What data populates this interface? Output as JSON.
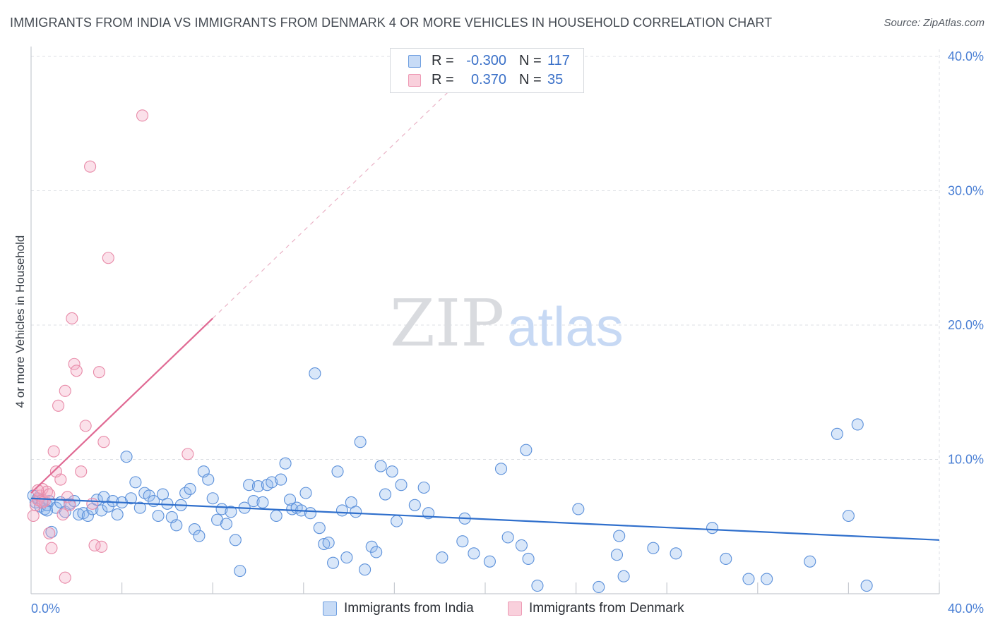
{
  "title": "IMMIGRANTS FROM INDIA VS IMMIGRANTS FROM DENMARK 4 OR MORE VEHICLES IN HOUSEHOLD CORRELATION CHART",
  "source": "Source: ZipAtlas.com",
  "watermark": {
    "zip": "ZIP",
    "atlas": "atlas"
  },
  "legend_top": {
    "rows": [
      {
        "r_label": "R =",
        "r_value": "-0.300",
        "n_label": "N =",
        "n_value": "117",
        "color": "#a9c8f2"
      },
      {
        "r_label": "R =",
        "r_value": "0.370",
        "n_label": "N =",
        "n_value": "35",
        "color": "#f6b8cb"
      }
    ]
  },
  "legend_bottom": {
    "india": {
      "label": "Immigrants from India",
      "color": "#a9c8f2"
    },
    "denmark": {
      "label": "Immigrants from Denmark",
      "color": "#f6b8cb"
    }
  },
  "colors": {
    "india_fill": "rgba(147,186,238,0.35)",
    "india_stroke": "#5b90da",
    "india_line": "#2f6fcc",
    "denmark_fill": "rgba(244,170,195,0.35)",
    "denmark_stroke": "#e88aa8",
    "denmark_line": "#e06a94",
    "tick_text": "#4a7fd4",
    "grid": "#dcdfe4"
  },
  "chart_data": {
    "type": "scatter",
    "title": "IMMIGRANTS FROM INDIA VS IMMIGRANTS FROM DENMARK 4 OR MORE VEHICLES IN HOUSEHOLD CORRELATION CHART",
    "xlabel": "",
    "ylabel": "4 or more Vehicles in Household",
    "xlim": [
      0,
      40
    ],
    "ylim": [
      0,
      40
    ],
    "x_tick_labels": [
      "0.0%",
      "40.0%"
    ],
    "y_tick_labels": [
      "10.0%",
      "20.0%",
      "30.0%",
      "40.0%"
    ],
    "y_ticks": [
      10,
      20,
      30,
      40
    ],
    "grid": true,
    "legend_position": "top-center",
    "series": [
      {
        "name": "Immigrants from India",
        "r": -0.3,
        "n": 117,
        "trend": {
          "x": [
            0,
            40
          ],
          "y": [
            7.1,
            4.0
          ]
        },
        "points": [
          [
            0.1,
            7.3
          ],
          [
            0.2,
            6.8
          ],
          [
            0.3,
            7.1
          ],
          [
            0.4,
            6.5
          ],
          [
            0.5,
            7.0
          ],
          [
            0.6,
            6.3
          ],
          [
            0.7,
            6.6
          ],
          [
            0.8,
            6.9
          ],
          [
            0.9,
            4.6
          ],
          [
            1.1,
            6.4
          ],
          [
            1.3,
            6.8
          ],
          [
            1.5,
            6.1
          ],
          [
            1.7,
            6.7
          ],
          [
            1.9,
            6.9
          ],
          [
            2.1,
            5.9
          ],
          [
            2.3,
            6.0
          ],
          [
            2.5,
            5.8
          ],
          [
            2.7,
            6.3
          ],
          [
            2.9,
            7.0
          ],
          [
            3.1,
            6.2
          ],
          [
            3.2,
            7.2
          ],
          [
            3.4,
            6.5
          ],
          [
            3.6,
            6.9
          ],
          [
            3.8,
            5.9
          ],
          [
            4.0,
            6.8
          ],
          [
            4.2,
            10.2
          ],
          [
            4.4,
            7.1
          ],
          [
            4.6,
            8.3
          ],
          [
            4.8,
            6.4
          ],
          [
            5.0,
            7.5
          ],
          [
            5.2,
            7.3
          ],
          [
            5.4,
            6.9
          ],
          [
            5.6,
            5.8
          ],
          [
            5.8,
            7.4
          ],
          [
            6.0,
            6.7
          ],
          [
            6.2,
            5.7
          ],
          [
            6.4,
            5.1
          ],
          [
            6.6,
            6.6
          ],
          [
            6.8,
            7.5
          ],
          [
            7.0,
            7.8
          ],
          [
            7.2,
            4.8
          ],
          [
            7.4,
            4.3
          ],
          [
            7.6,
            9.1
          ],
          [
            7.8,
            8.5
          ],
          [
            8.0,
            7.1
          ],
          [
            8.2,
            5.5
          ],
          [
            8.4,
            6.3
          ],
          [
            8.6,
            5.2
          ],
          [
            8.8,
            6.1
          ],
          [
            9.0,
            4.0
          ],
          [
            9.2,
            1.7
          ],
          [
            9.4,
            6.4
          ],
          [
            9.6,
            8.1
          ],
          [
            9.8,
            6.9
          ],
          [
            10.0,
            8.0
          ],
          [
            10.2,
            6.8
          ],
          [
            10.4,
            8.1
          ],
          [
            10.6,
            8.3
          ],
          [
            10.8,
            5.8
          ],
          [
            11.0,
            8.5
          ],
          [
            11.2,
            9.7
          ],
          [
            11.4,
            7.0
          ],
          [
            11.5,
            6.3
          ],
          [
            11.7,
            6.4
          ],
          [
            11.9,
            6.2
          ],
          [
            12.1,
            7.5
          ],
          [
            12.3,
            6.0
          ],
          [
            12.5,
            16.4
          ],
          [
            12.7,
            4.9
          ],
          [
            12.9,
            3.7
          ],
          [
            13.1,
            3.8
          ],
          [
            13.3,
            2.3
          ],
          [
            13.5,
            9.1
          ],
          [
            13.7,
            6.2
          ],
          [
            13.9,
            2.7
          ],
          [
            14.1,
            6.8
          ],
          [
            14.3,
            6.1
          ],
          [
            14.5,
            11.3
          ],
          [
            14.7,
            1.8
          ],
          [
            15.0,
            3.5
          ],
          [
            15.2,
            3.1
          ],
          [
            15.4,
            9.5
          ],
          [
            15.6,
            7.4
          ],
          [
            15.9,
            9.1
          ],
          [
            16.1,
            5.4
          ],
          [
            16.3,
            8.1
          ],
          [
            16.9,
            6.6
          ],
          [
            17.3,
            7.9
          ],
          [
            17.5,
            6.0
          ],
          [
            18.1,
            2.7
          ],
          [
            19.0,
            3.9
          ],
          [
            19.1,
            5.6
          ],
          [
            19.5,
            3.0
          ],
          [
            20.2,
            2.4
          ],
          [
            20.7,
            9.3
          ],
          [
            21.0,
            4.2
          ],
          [
            21.6,
            3.6
          ],
          [
            21.8,
            10.7
          ],
          [
            21.9,
            2.6
          ],
          [
            22.3,
            0.6
          ],
          [
            24.1,
            6.3
          ],
          [
            25.0,
            0.5
          ],
          [
            25.8,
            2.9
          ],
          [
            25.9,
            4.3
          ],
          [
            26.1,
            1.3
          ],
          [
            27.4,
            3.4
          ],
          [
            28.4,
            3.0
          ],
          [
            30.0,
            4.9
          ],
          [
            30.6,
            2.6
          ],
          [
            31.6,
            1.1
          ],
          [
            32.4,
            1.1
          ],
          [
            34.3,
            2.4
          ],
          [
            35.5,
            11.9
          ],
          [
            36.0,
            5.8
          ],
          [
            36.4,
            12.6
          ],
          [
            36.8,
            0.6
          ],
          [
            0.7,
            6.2
          ]
        ]
      },
      {
        "name": "Immigrants from Denmark",
        "r": 0.37,
        "n": 35,
        "trend": {
          "x": [
            0,
            8.0
          ],
          "y": [
            7.5,
            20.5
          ]
        },
        "points": [
          [
            0.1,
            5.8
          ],
          [
            0.2,
            6.6
          ],
          [
            0.3,
            7.0
          ],
          [
            0.4,
            7.3
          ],
          [
            0.5,
            7.8
          ],
          [
            0.6,
            6.9
          ],
          [
            0.7,
            7.6
          ],
          [
            0.8,
            4.5
          ],
          [
            0.9,
            3.4
          ],
          [
            1.0,
            10.6
          ],
          [
            1.1,
            9.1
          ],
          [
            1.3,
            8.5
          ],
          [
            1.4,
            5.9
          ],
          [
            1.5,
            15.1
          ],
          [
            1.6,
            7.2
          ],
          [
            1.7,
            6.6
          ],
          [
            1.8,
            20.5
          ],
          [
            1.9,
            17.1
          ],
          [
            2.0,
            16.6
          ],
          [
            2.2,
            9.1
          ],
          [
            2.4,
            12.5
          ],
          [
            2.6,
            31.8
          ],
          [
            2.7,
            6.7
          ],
          [
            3.0,
            16.5
          ],
          [
            3.1,
            3.5
          ],
          [
            3.2,
            11.3
          ],
          [
            3.4,
            25.0
          ],
          [
            4.9,
            35.6
          ],
          [
            6.9,
            10.4
          ],
          [
            2.8,
            3.6
          ],
          [
            1.5,
            1.2
          ],
          [
            0.5,
            6.8
          ],
          [
            0.3,
            7.7
          ],
          [
            0.8,
            7.4
          ],
          [
            1.2,
            14.0
          ]
        ]
      }
    ]
  }
}
